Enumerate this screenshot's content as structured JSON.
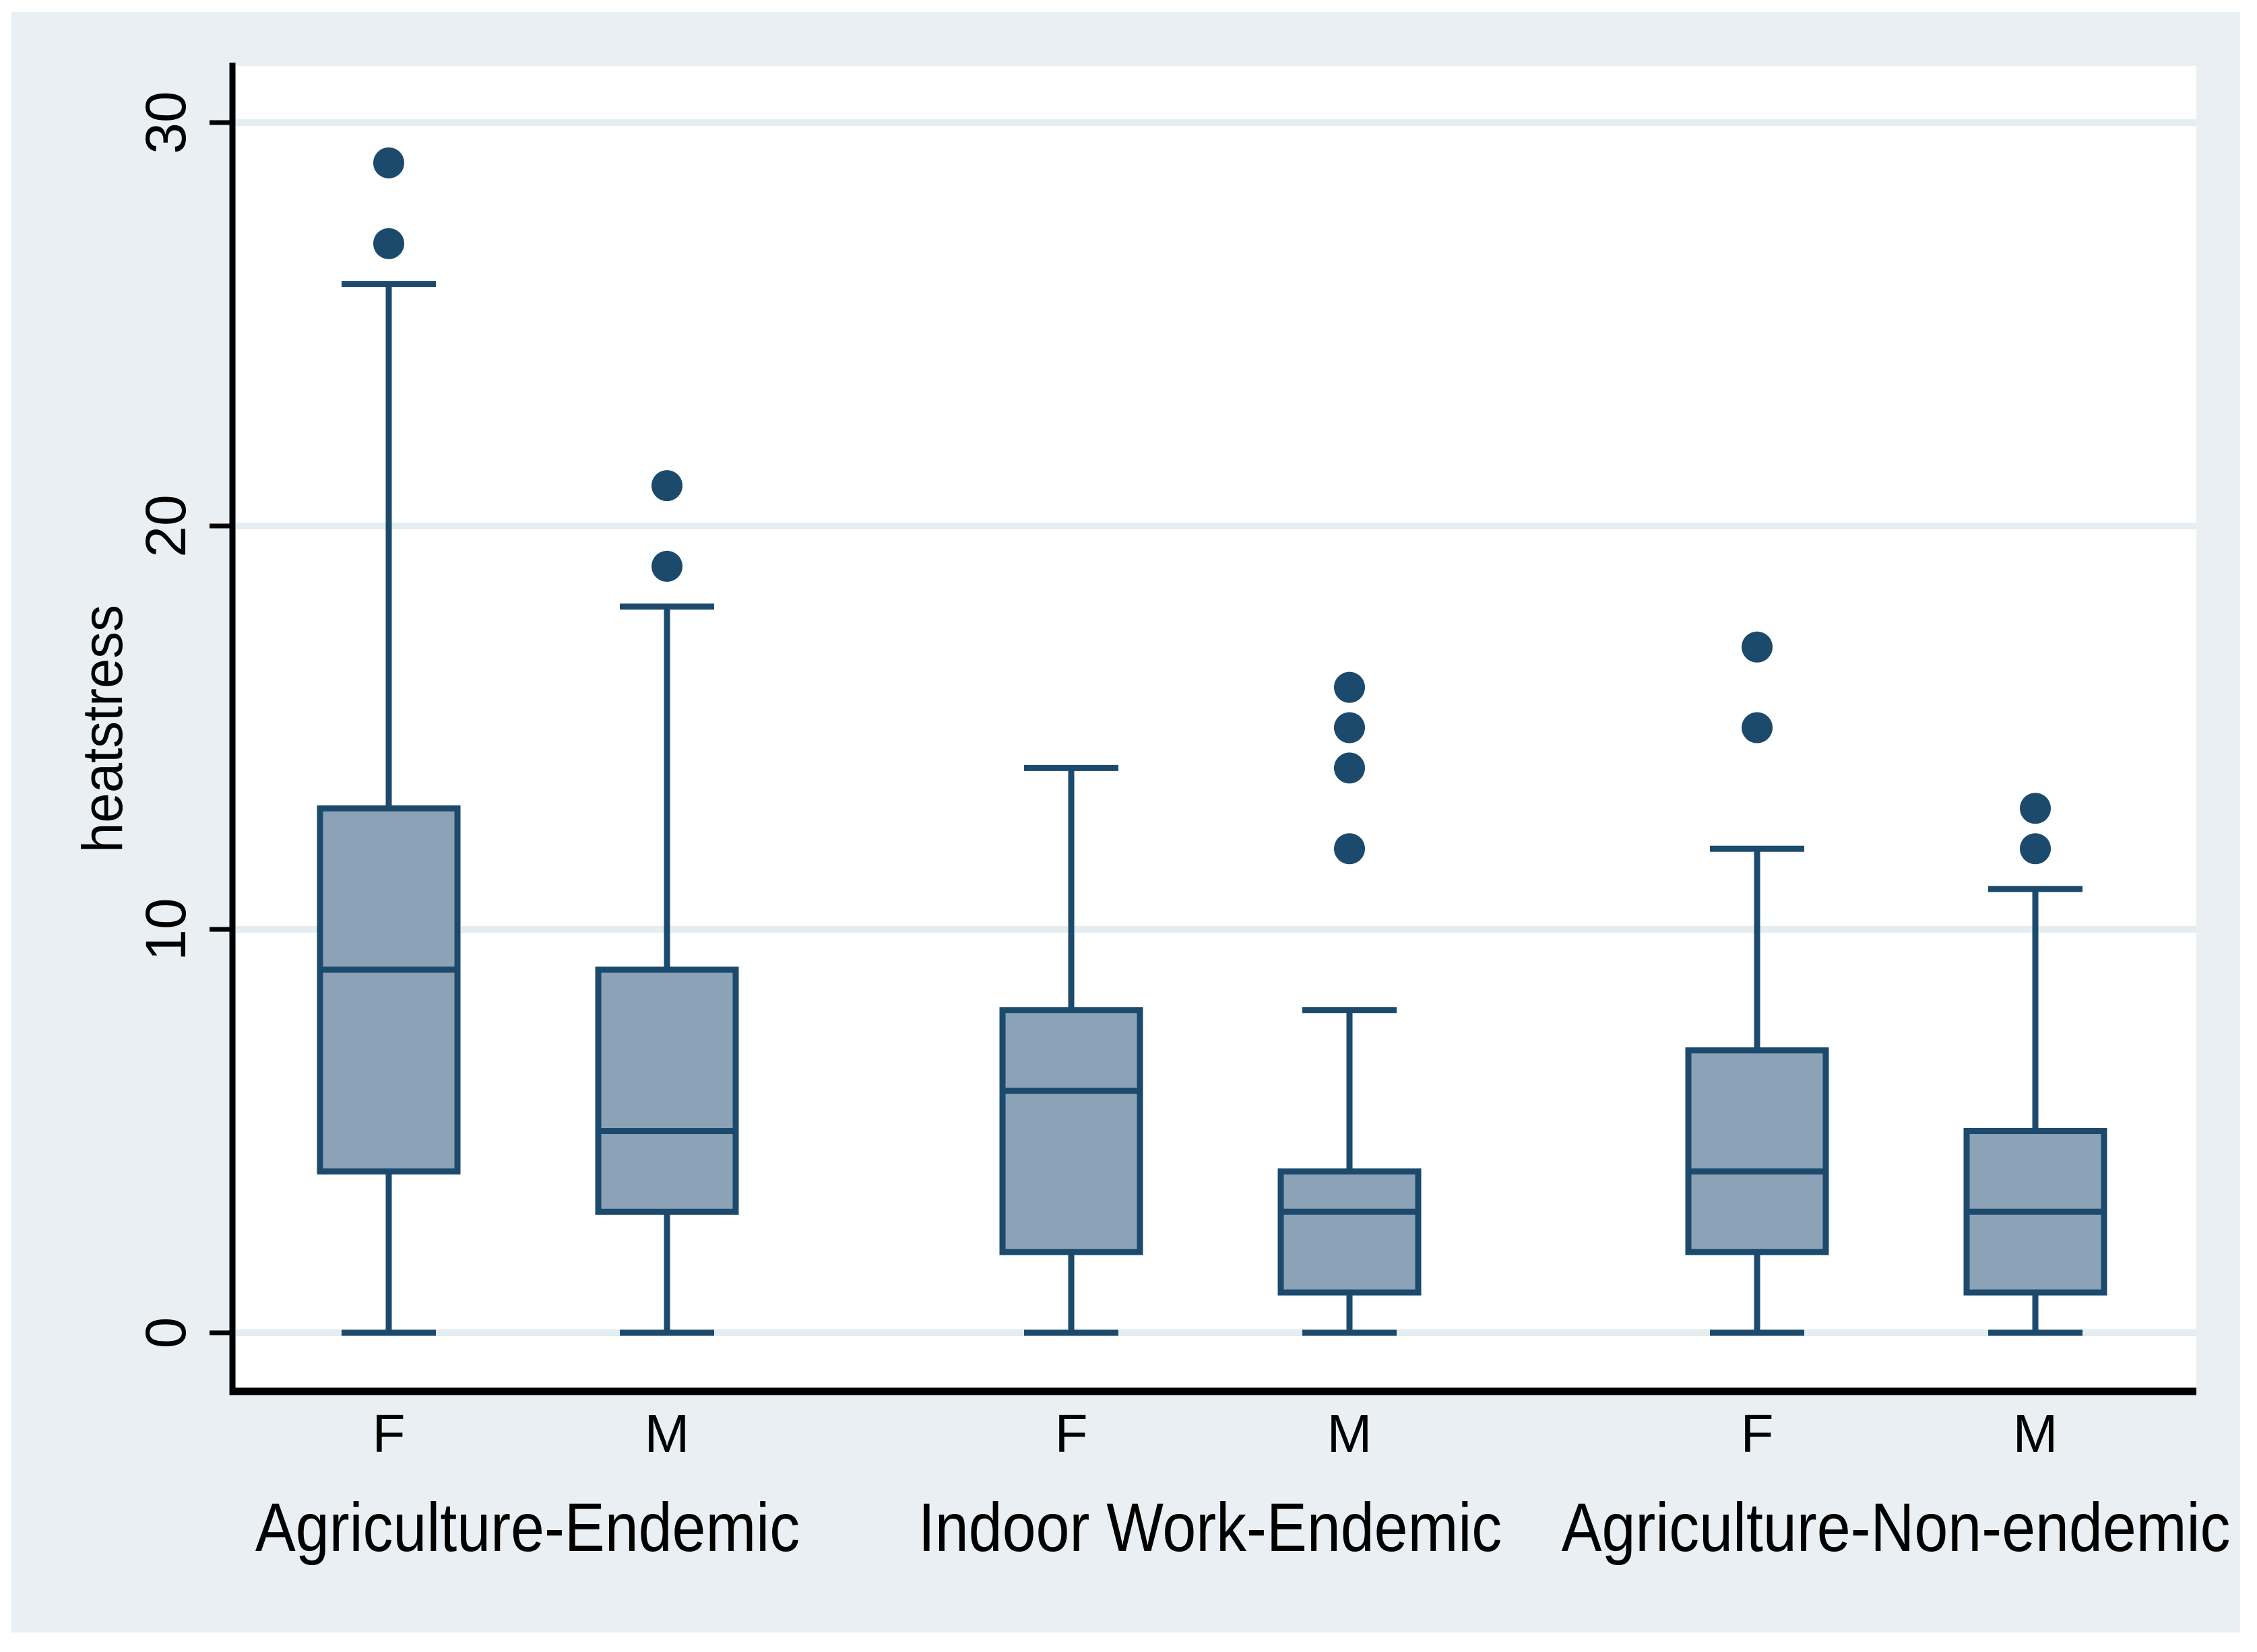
{
  "palette": {
    "graph_background": "#e9eff2",
    "plot_background": "#ffffff",
    "grid_line": "#e4edf0",
    "box_fill": "#8ca2b7",
    "box_line": "#1c4a6d",
    "axis_line": "#000000",
    "text": "#000000"
  },
  "chart_data": {
    "type": "boxplot",
    "title": "",
    "xlabel": "",
    "ylabel": "heatstress",
    "ylim": [
      0,
      30
    ],
    "yticks": [
      0,
      10,
      20,
      30
    ],
    "grid": true,
    "legend": false,
    "orientation": "vertical",
    "groups": [
      {
        "label": "Agriculture-Endemic",
        "boxes": [
          {
            "sex": "F",
            "whisker_low": 0,
            "q1": 4,
            "median": 9,
            "q3": 13,
            "whisker_high": 26,
            "outliers": [
              27,
              29
            ]
          },
          {
            "sex": "M",
            "whisker_low": 0,
            "q1": 3,
            "median": 5,
            "q3": 9,
            "whisker_high": 18,
            "outliers": [
              19,
              21
            ]
          }
        ]
      },
      {
        "label": "Indoor Work-Endemic",
        "boxes": [
          {
            "sex": "F",
            "whisker_low": 0,
            "q1": 2,
            "median": 6,
            "q3": 8,
            "whisker_high": 14,
            "outliers": []
          },
          {
            "sex": "M",
            "whisker_low": 0,
            "q1": 1,
            "median": 3,
            "q3": 4,
            "whisker_high": 8,
            "outliers": [
              12,
              14,
              15,
              16
            ]
          }
        ]
      },
      {
        "label": "Agriculture-Non-endemic",
        "boxes": [
          {
            "sex": "F",
            "whisker_low": 0,
            "q1": 2,
            "median": 4,
            "q3": 7,
            "whisker_high": 12,
            "outliers": [
              15,
              17
            ]
          },
          {
            "sex": "M",
            "whisker_low": 0,
            "q1": 1,
            "median": 3,
            "q3": 5,
            "whisker_high": 11,
            "outliers": [
              12,
              13
            ]
          }
        ]
      }
    ]
  }
}
